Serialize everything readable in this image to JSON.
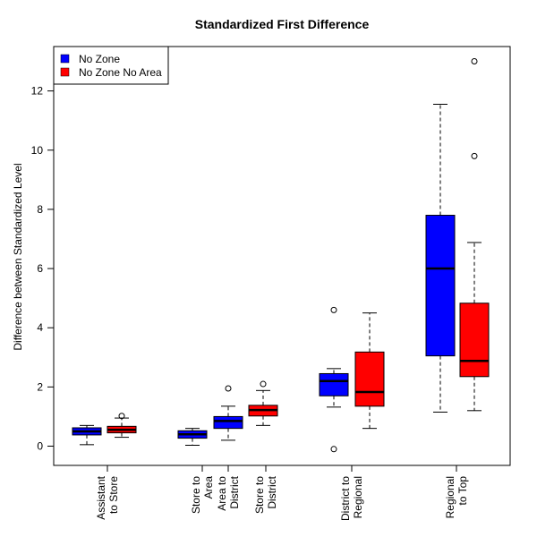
{
  "chart_data": {
    "type": "boxplot",
    "title": "Standardized First Difference",
    "xlabel": "",
    "ylabel": "Difference between Standardized Level",
    "ylim": [
      -0.65,
      13.5
    ],
    "yticks": [
      0,
      2,
      4,
      6,
      8,
      10,
      12
    ],
    "grid": false,
    "legend_position": "top-left",
    "colors": {
      "No Zone": "#0000ff",
      "No Zone No Area": "#ff0000"
    },
    "legend": [
      {
        "name": "No Zone",
        "color": "#0000ff"
      },
      {
        "name": "No Zone No Area",
        "color": "#ff0000"
      }
    ],
    "categories": [
      {
        "lines": [
          "Assistant",
          "to Store"
        ]
      },
      {
        "lines": [
          "Store to",
          "Area"
        ]
      },
      {
        "lines": [
          "Area to",
          "District"
        ]
      },
      {
        "lines": [
          "Store to",
          "District"
        ]
      },
      {
        "lines": [
          "District to",
          "Regional"
        ]
      },
      {
        "lines": [
          "Regional",
          "to Top"
        ]
      }
    ],
    "boxes": [
      {
        "category": "Assistant to Store",
        "series": "No Zone",
        "whisker_low": 0.05,
        "q1": 0.38,
        "median": 0.5,
        "q3": 0.62,
        "whisker_high": 0.7,
        "outliers": []
      },
      {
        "category": "Assistant to Store",
        "series": "No Zone No Area",
        "whisker_low": 0.3,
        "q1": 0.45,
        "median": 0.55,
        "q3": 0.67,
        "whisker_high": 0.95,
        "outliers": [
          1.02
        ]
      },
      {
        "category": "Store to Area",
        "series": "No Zone",
        "whisker_low": 0.03,
        "q1": 0.27,
        "median": 0.4,
        "q3": 0.52,
        "whisker_high": 0.6,
        "outliers": []
      },
      {
        "category": "Area to District",
        "series": "No Zone",
        "whisker_low": 0.2,
        "q1": 0.6,
        "median": 0.85,
        "q3": 1.0,
        "whisker_high": 1.35,
        "outliers": [
          1.95
        ]
      },
      {
        "category": "Store to District",
        "series": "No Zone No Area",
        "whisker_low": 0.7,
        "q1": 1.02,
        "median": 1.22,
        "q3": 1.38,
        "whisker_high": 1.88,
        "outliers": [
          2.1
        ]
      },
      {
        "category": "District to Regional",
        "series": "No Zone",
        "whisker_low": 1.32,
        "q1": 1.7,
        "median": 2.2,
        "q3": 2.45,
        "whisker_high": 2.62,
        "outliers": [
          4.6,
          -0.1
        ]
      },
      {
        "category": "District to Regional",
        "series": "No Zone No Area",
        "whisker_low": 0.6,
        "q1": 1.35,
        "median": 1.83,
        "q3": 3.18,
        "whisker_high": 4.5,
        "outliers": []
      },
      {
        "category": "Regional to Top",
        "series": "No Zone",
        "whisker_low": 1.15,
        "q1": 3.05,
        "median": 6.0,
        "q3": 7.8,
        "whisker_high": 11.55,
        "outliers": []
      },
      {
        "category": "Regional to Top",
        "series": "No Zone No Area",
        "whisker_low": 1.2,
        "q1": 2.35,
        "median": 2.88,
        "q3": 4.83,
        "whisker_high": 6.88,
        "outliers": [
          9.8,
          13.0
        ]
      }
    ]
  }
}
